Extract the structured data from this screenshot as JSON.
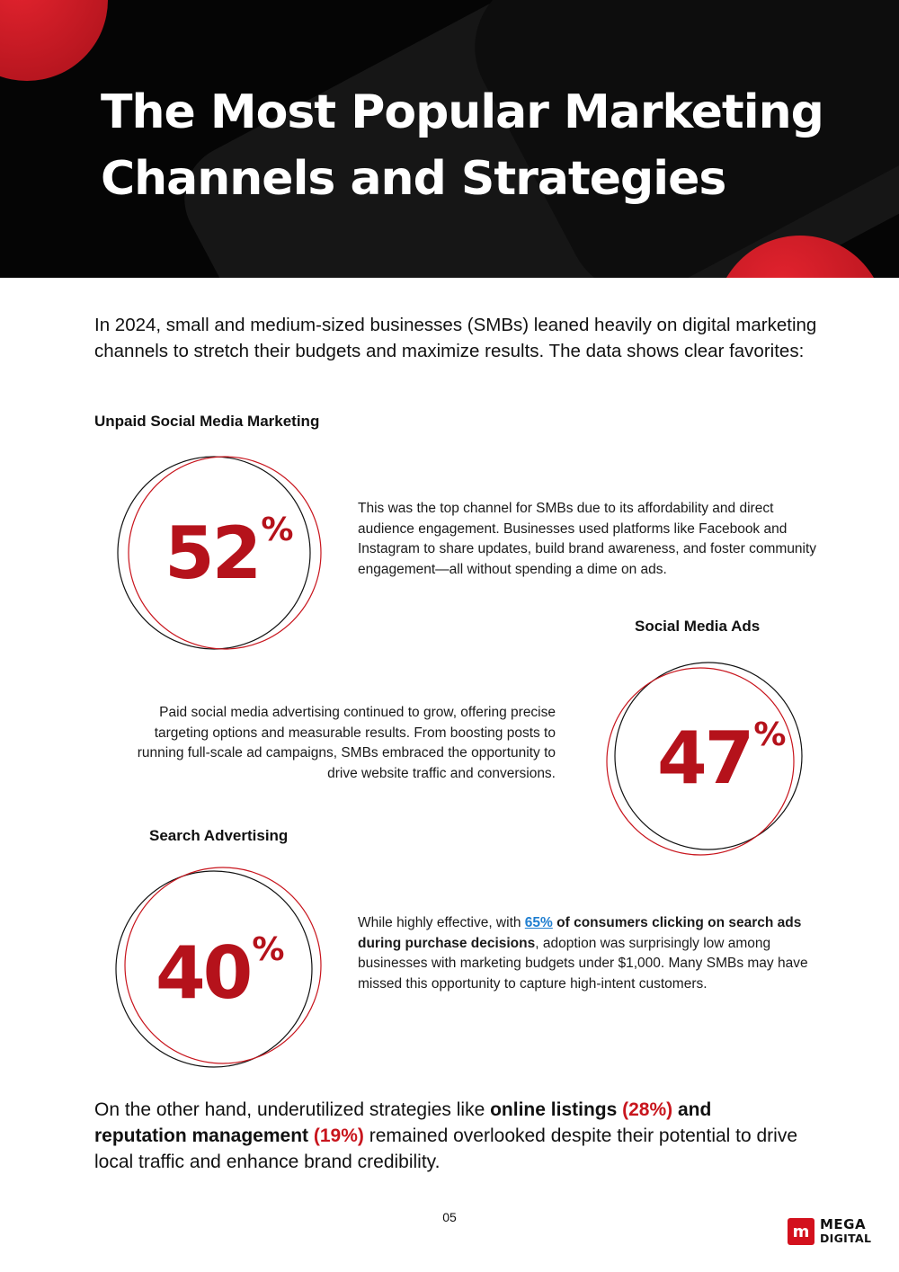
{
  "header": {
    "title_line1": "The Most Popular Marketing",
    "title_line2": "Channels and Strategies"
  },
  "intro": "In 2024, small and medium-sized businesses (SMBs) leaned heavily on digital marketing channels to stretch their budgets and maximize results. The data shows clear favorites:",
  "sections": [
    {
      "heading": "Unpaid Social Media Marketing",
      "value": 52,
      "percent": "52",
      "percent_sign": "%",
      "text": "This was the top channel for SMBs due to its affordability and direct audience engagement. Businesses used platforms like Facebook and Instagram to share updates, build brand awareness, and foster community engagement—all without spending a dime on ads."
    },
    {
      "heading": "Social Media Ads",
      "value": 47,
      "percent": "47",
      "percent_sign": "%",
      "text": "Paid social media advertising continued to grow, offering precise targeting options and measurable results. From boosting posts to running full-scale ad campaigns, SMBs embraced the opportunity to drive website traffic and conversions."
    },
    {
      "heading": "Search Advertising",
      "value": 40,
      "percent": "40",
      "percent_sign": "%",
      "text_before": "While highly effective, with ",
      "link": "65%",
      "text_bold": " of consumers clicking on search ads during purchase decisions",
      "text_after": ", adoption was surprisingly low among businesses with marketing budgets under $1,000. Many SMBs may have missed this opportunity to capture high-intent customers."
    }
  ],
  "outro": {
    "part1": "On the other hand, underutilized strategies like ",
    "bold1": "online listings",
    "red1": " (28%)",
    "bold_and": " and",
    "bold2": "reputation management",
    "red2": " (19%)",
    "part2": " remained overlooked despite their potential to drive local traffic and enhance brand credibility."
  },
  "page_number": "05",
  "logo": {
    "mark": "m",
    "word1": "MEGA",
    "word2": "DIGITAL"
  },
  "colors": {
    "accent_red": "#b5121b",
    "link_blue": "#1f7ed0",
    "header_bg": "#050505"
  }
}
